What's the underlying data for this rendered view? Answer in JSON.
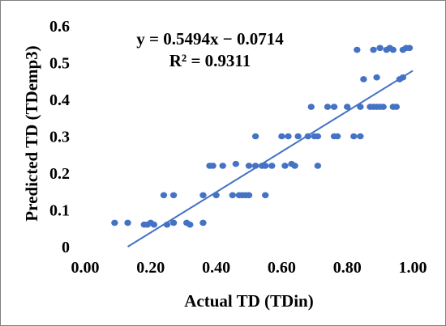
{
  "chart_data": {
    "type": "scatter",
    "xlabel": "Actual TD (TDin)",
    "ylabel": "Predicted TD (TDemp3)",
    "xlim": [
      0,
      1.0
    ],
    "ylim": [
      0,
      0.6
    ],
    "x_ticks": [
      "0.00",
      "0.20",
      "0.40",
      "0.60",
      "0.80",
      "1.00"
    ],
    "y_ticks": [
      "0",
      "0.1",
      "0.2",
      "0.3",
      "0.4",
      "0.5",
      "0.6"
    ],
    "grid": false,
    "legend": "none",
    "marker_color": "#4472c4",
    "trendline": {
      "slope": 0.5494,
      "intercept": -0.0714,
      "x_range": [
        0.13,
        1.0
      ],
      "equation_label": "y = 0.5494x − 0.0714",
      "r2_label": "R² = 0.9311"
    },
    "series": [
      {
        "points": [
          [
            0.09,
            0.065
          ],
          [
            0.13,
            0.065
          ],
          [
            0.18,
            0.06
          ],
          [
            0.19,
            0.06
          ],
          [
            0.2,
            0.065
          ],
          [
            0.21,
            0.06
          ],
          [
            0.25,
            0.06
          ],
          [
            0.27,
            0.065
          ],
          [
            0.31,
            0.065
          ],
          [
            0.32,
            0.06
          ],
          [
            0.36,
            0.065
          ],
          [
            0.24,
            0.14
          ],
          [
            0.27,
            0.14
          ],
          [
            0.36,
            0.14
          ],
          [
            0.4,
            0.14
          ],
          [
            0.45,
            0.14
          ],
          [
            0.47,
            0.14
          ],
          [
            0.48,
            0.14
          ],
          [
            0.49,
            0.14
          ],
          [
            0.5,
            0.14
          ],
          [
            0.55,
            0.14
          ],
          [
            0.38,
            0.22
          ],
          [
            0.39,
            0.22
          ],
          [
            0.42,
            0.22
          ],
          [
            0.46,
            0.225
          ],
          [
            0.5,
            0.22
          ],
          [
            0.52,
            0.22
          ],
          [
            0.54,
            0.22
          ],
          [
            0.55,
            0.22
          ],
          [
            0.57,
            0.22
          ],
          [
            0.61,
            0.22
          ],
          [
            0.63,
            0.225
          ],
          [
            0.64,
            0.22
          ],
          [
            0.71,
            0.22
          ],
          [
            0.52,
            0.3
          ],
          [
            0.6,
            0.3
          ],
          [
            0.62,
            0.3
          ],
          [
            0.65,
            0.3
          ],
          [
            0.68,
            0.3
          ],
          [
            0.7,
            0.3
          ],
          [
            0.71,
            0.3
          ],
          [
            0.76,
            0.3
          ],
          [
            0.77,
            0.3
          ],
          [
            0.82,
            0.3
          ],
          [
            0.84,
            0.3
          ],
          [
            0.69,
            0.38
          ],
          [
            0.74,
            0.38
          ],
          [
            0.76,
            0.38
          ],
          [
            0.8,
            0.38
          ],
          [
            0.84,
            0.38
          ],
          [
            0.87,
            0.38
          ],
          [
            0.88,
            0.38
          ],
          [
            0.89,
            0.38
          ],
          [
            0.9,
            0.38
          ],
          [
            0.91,
            0.38
          ],
          [
            0.94,
            0.38
          ],
          [
            0.95,
            0.38
          ],
          [
            0.85,
            0.455
          ],
          [
            0.89,
            0.46
          ],
          [
            0.96,
            0.455
          ],
          [
            0.97,
            0.46
          ],
          [
            0.83,
            0.535
          ],
          [
            0.88,
            0.535
          ],
          [
            0.9,
            0.54
          ],
          [
            0.92,
            0.535
          ],
          [
            0.93,
            0.54
          ],
          [
            0.94,
            0.535
          ],
          [
            0.97,
            0.535
          ],
          [
            0.98,
            0.54
          ],
          [
            0.99,
            0.54
          ]
        ]
      }
    ]
  }
}
